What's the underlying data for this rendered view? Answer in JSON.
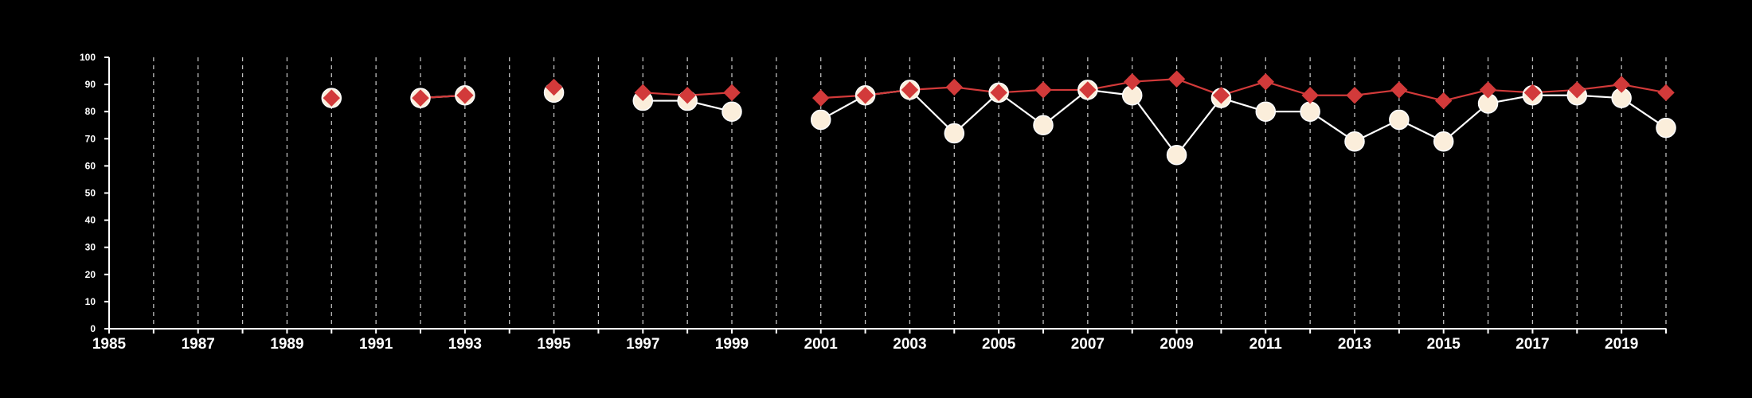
{
  "chart_data": {
    "type": "line",
    "title": "",
    "xlabel": "",
    "ylabel": "",
    "xlim": [
      1985,
      2020
    ],
    "ylim": [
      0,
      100
    ],
    "x_ticks": [
      1985,
      1986,
      1987,
      1988,
      1989,
      1990,
      1991,
      1992,
      1993,
      1994,
      1995,
      1996,
      1997,
      1998,
      1999,
      2000,
      2001,
      2002,
      2003,
      2004,
      2005,
      2006,
      2007,
      2008,
      2009,
      2010,
      2011,
      2012,
      2013,
      2014,
      2015,
      2016,
      2017,
      2018,
      2019,
      2020
    ],
    "x_tick_labels": [
      "1985",
      "1987",
      "1989",
      "1991",
      "1993",
      "1995",
      "1997",
      "1999",
      "2001",
      "2003",
      "2005",
      "2007",
      "2009",
      "2011",
      "2013",
      "2015",
      "2017",
      "2019"
    ],
    "y_ticks": [
      0,
      10,
      20,
      30,
      40,
      50,
      60,
      70,
      80,
      90,
      100
    ],
    "y_tick_labels": [
      "0",
      "10",
      "20",
      "30",
      "40",
      "50",
      "60",
      "70",
      "80",
      "90",
      "100"
    ],
    "grid": "vertical dashed lines at every year",
    "background": "#000000",
    "series": [
      {
        "color": "#fbeedb",
        "marker": "circle",
        "line_color": "#ffffff",
        "points": [
          [
            1990,
            85
          ],
          [
            1992,
            85
          ],
          [
            1993,
            86
          ],
          [
            1995,
            87
          ],
          [
            1997,
            84
          ],
          [
            1998,
            84
          ],
          [
            1999,
            80
          ],
          [
            2001,
            77
          ],
          [
            2002,
            86
          ],
          [
            2003,
            88
          ],
          [
            2004,
            72
          ],
          [
            2005,
            87
          ],
          [
            2006,
            75
          ],
          [
            2007,
            88
          ],
          [
            2008,
            86
          ],
          [
            2009,
            64
          ],
          [
            2010,
            85
          ],
          [
            2011,
            80
          ],
          [
            2012,
            80
          ],
          [
            2013,
            69
          ],
          [
            2014,
            77
          ],
          [
            2015,
            69
          ],
          [
            2016,
            83
          ],
          [
            2017,
            86
          ],
          [
            2018,
            86
          ],
          [
            2019,
            85
          ],
          [
            2020,
            74
          ]
        ]
      },
      {
        "color": "#d23a3a",
        "marker": "diamond",
        "line_color": "#d23a3a",
        "points": [
          [
            1990,
            85
          ],
          [
            1992,
            85
          ],
          [
            1993,
            86
          ],
          [
            1995,
            89
          ],
          [
            1997,
            87
          ],
          [
            1998,
            86
          ],
          [
            1999,
            87
          ],
          [
            2001,
            85
          ],
          [
            2002,
            86
          ],
          [
            2003,
            88
          ],
          [
            2004,
            89
          ],
          [
            2005,
            87
          ],
          [
            2006,
            88
          ],
          [
            2007,
            88
          ],
          [
            2008,
            91
          ],
          [
            2009,
            92
          ],
          [
            2010,
            86
          ],
          [
            2011,
            91
          ],
          [
            2012,
            86
          ],
          [
            2013,
            86
          ],
          [
            2014,
            88
          ],
          [
            2015,
            84
          ],
          [
            2016,
            88
          ],
          [
            2017,
            87
          ],
          [
            2018,
            88
          ],
          [
            2019,
            90
          ],
          [
            2020,
            87
          ]
        ]
      }
    ]
  }
}
